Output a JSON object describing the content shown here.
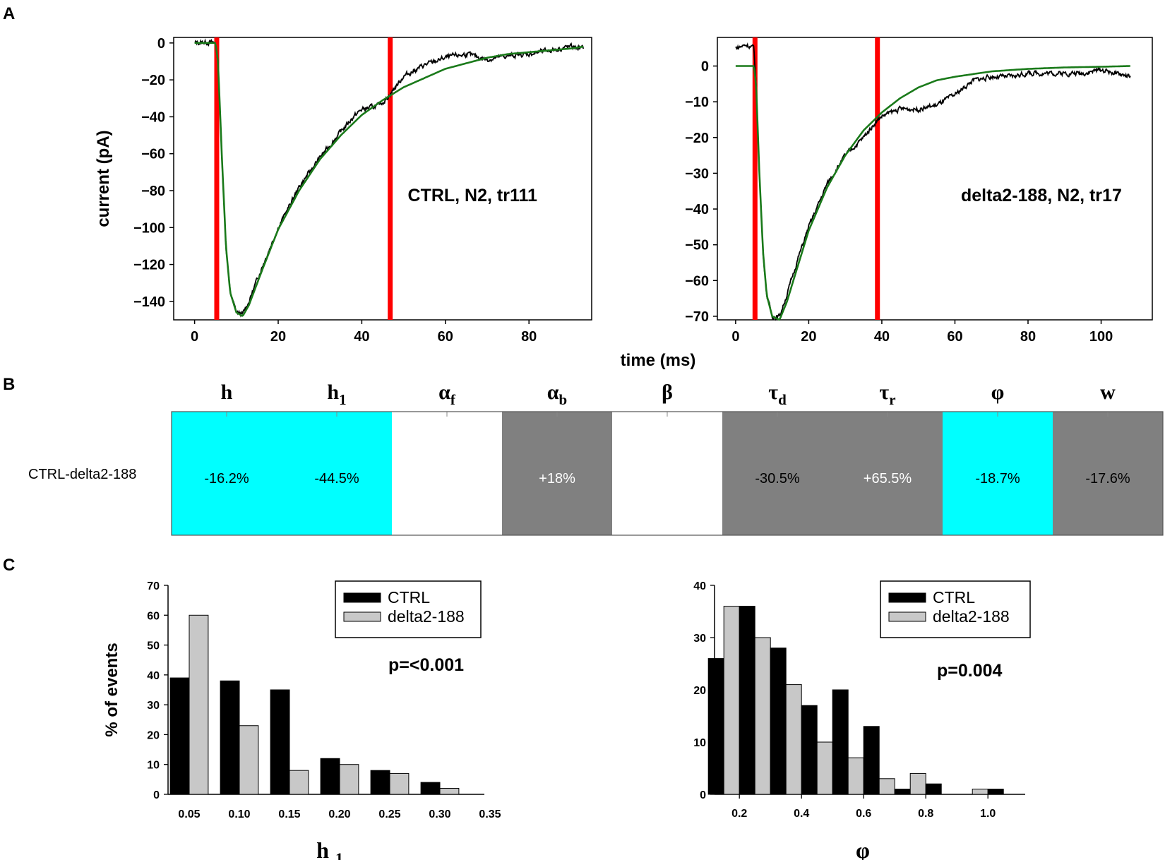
{
  "panel_letters": {
    "a": "A",
    "b": "B",
    "c": "C"
  },
  "colors": {
    "trace": "#000000",
    "fit": "#1a7a1a",
    "marker": "#ff0000",
    "cyan": "#00ffff",
    "gray": "#808080",
    "ctrl_bar": "#000000",
    "d2_bar": "#c8c8c8"
  },
  "shared_xlabel": "time (ms)",
  "chart_data": [
    {
      "id": "A-left",
      "type": "line",
      "title": "",
      "annotation": "CTRL, N2, tr111",
      "xlabel": "time (ms)",
      "ylabel": "current (pA)",
      "xlim": [
        -5,
        95
      ],
      "ylim": [
        -150,
        3
      ],
      "xticks": [
        0,
        20,
        40,
        60,
        80
      ],
      "yticks": [
        0,
        -20,
        -40,
        -60,
        -80,
        -100,
        -120,
        -140
      ],
      "markers_x": [
        5.3,
        46.8
      ],
      "series": [
        {
          "name": "recorded trace",
          "type": "noisy",
          "points": [
            [
              0,
              0
            ],
            [
              3,
              0.5
            ],
            [
              5,
              0
            ],
            [
              5.6,
              -10
            ],
            [
              6.5,
              -60
            ],
            [
              7.5,
              -110
            ],
            [
              8.5,
              -135
            ],
            [
              10,
              -146
            ],
            [
              11.5,
              -147
            ],
            [
              13,
              -140
            ],
            [
              16,
              -122
            ],
            [
              20,
              -100
            ],
            [
              25,
              -78
            ],
            [
              30,
              -62
            ],
            [
              35,
              -48
            ],
            [
              38,
              -40
            ],
            [
              40,
              -36
            ],
            [
              42,
              -35
            ],
            [
              44,
              -34
            ],
            [
              46,
              -30
            ],
            [
              48,
              -24
            ],
            [
              50,
              -18
            ],
            [
              55,
              -12
            ],
            [
              60,
              -8
            ],
            [
              65,
              -6
            ],
            [
              70,
              -9
            ],
            [
              75,
              -7
            ],
            [
              80,
              -6
            ],
            [
              85,
              -4
            ],
            [
              90,
              -2
            ],
            [
              93,
              -3
            ]
          ]
        },
        {
          "name": "model fit",
          "type": "smooth",
          "points": [
            [
              0,
              0
            ],
            [
              5,
              0
            ],
            [
              5.6,
              -10
            ],
            [
              6.5,
              -60
            ],
            [
              7.5,
              -110
            ],
            [
              8.5,
              -135
            ],
            [
              10,
              -146
            ],
            [
              11.5,
              -148
            ],
            [
              13,
              -142
            ],
            [
              16,
              -124
            ],
            [
              20,
              -101
            ],
            [
              25,
              -80
            ],
            [
              30,
              -63
            ],
            [
              35,
              -50
            ],
            [
              40,
              -39
            ],
            [
              45,
              -31
            ],
            [
              50,
              -24
            ],
            [
              55,
              -19
            ],
            [
              60,
              -14
            ],
            [
              65,
              -11
            ],
            [
              70,
              -8
            ],
            [
              75,
              -6
            ],
            [
              80,
              -5
            ],
            [
              85,
              -4
            ],
            [
              90,
              -3
            ],
            [
              93,
              -2
            ]
          ]
        }
      ]
    },
    {
      "id": "A-right",
      "type": "line",
      "title": "",
      "annotation": "delta2-188, N2, tr17",
      "xlabel": "time (ms)",
      "ylabel": "",
      "xlim": [
        -5,
        114
      ],
      "ylim": [
        -71,
        8
      ],
      "xticks": [
        0,
        20,
        40,
        60,
        80,
        100
      ],
      "yticks": [
        0,
        -10,
        -20,
        -30,
        -40,
        -50,
        -60,
        -70
      ],
      "markers_x": [
        5.3,
        38.8
      ],
      "series": [
        {
          "name": "recorded trace",
          "type": "noisy",
          "points": [
            [
              0,
              5
            ],
            [
              3,
              6
            ],
            [
              5,
              5
            ],
            [
              5.6,
              -5
            ],
            [
              6.5,
              -30
            ],
            [
              7.5,
              -52
            ],
            [
              8.5,
              -64
            ],
            [
              10,
              -70
            ],
            [
              12,
              -70
            ],
            [
              14,
              -64
            ],
            [
              17,
              -54
            ],
            [
              20,
              -45
            ],
            [
              25,
              -33
            ],
            [
              30,
              -25
            ],
            [
              35,
              -20
            ],
            [
              38,
              -16
            ],
            [
              40,
              -14
            ],
            [
              45,
              -12
            ],
            [
              50,
              -12
            ],
            [
              55,
              -11
            ],
            [
              60,
              -8
            ],
            [
              65,
              -4
            ],
            [
              70,
              -3
            ],
            [
              75,
              -3
            ],
            [
              80,
              -2
            ],
            [
              85,
              -2
            ],
            [
              90,
              -2
            ],
            [
              95,
              -2
            ],
            [
              100,
              -1
            ],
            [
              104,
              -2
            ],
            [
              108,
              -3
            ]
          ]
        },
        {
          "name": "model fit",
          "type": "smooth",
          "points": [
            [
              0,
              0
            ],
            [
              5,
              0
            ],
            [
              5.6,
              -5
            ],
            [
              6.5,
              -30
            ],
            [
              7.5,
              -52
            ],
            [
              8.5,
              -64
            ],
            [
              10,
              -70
            ],
            [
              12,
              -71
            ],
            [
              14,
              -66
            ],
            [
              17,
              -56
            ],
            [
              20,
              -46
            ],
            [
              25,
              -34
            ],
            [
              30,
              -25
            ],
            [
              35,
              -18
            ],
            [
              40,
              -13
            ],
            [
              45,
              -9
            ],
            [
              50,
              -6
            ],
            [
              55,
              -4
            ],
            [
              60,
              -3
            ],
            [
              70,
              -1.5
            ],
            [
              80,
              -0.8
            ],
            [
              90,
              -0.4
            ],
            [
              100,
              -0.2
            ],
            [
              108,
              0
            ]
          ]
        }
      ]
    },
    {
      "id": "B",
      "type": "table",
      "row_label": "CTRL-delta2-188",
      "columns": [
        {
          "sym": "h",
          "sub": "",
          "value": "-16.2%",
          "fill": "cyan"
        },
        {
          "sym": "h",
          "sub": "1",
          "value": "-44.5%",
          "fill": "cyan"
        },
        {
          "sym": "α",
          "sub": "f",
          "value": "",
          "fill": "white"
        },
        {
          "sym": "α",
          "sub": "b",
          "value": "+18%",
          "fill": "gray"
        },
        {
          "sym": "β",
          "sub": "",
          "value": "",
          "fill": "white"
        },
        {
          "sym": "τ",
          "sub": "d",
          "value": "-30.5%",
          "fill": "gray"
        },
        {
          "sym": "τ",
          "sub": "r",
          "value": "+65.5%",
          "fill": "gray"
        },
        {
          "sym": "φ",
          "sub": "",
          "value": "-18.7%",
          "fill": "cyan"
        },
        {
          "sym": "w",
          "sub": "",
          "value": "-17.6%",
          "fill": "gray"
        }
      ]
    },
    {
      "id": "C-left",
      "type": "bar",
      "xlabel": "h",
      "xlabel_sub": "1",
      "ylabel": "% of events",
      "annotation": "p=<0.001",
      "ylim": [
        0,
        70
      ],
      "yticks": [
        0,
        10,
        20,
        30,
        40,
        50,
        60,
        70
      ],
      "xticks": [
        "0.05",
        "0.10",
        "0.15",
        "0.20",
        "0.25",
        "0.30",
        "0.35"
      ],
      "categories": [
        "0.05",
        "0.10",
        "0.15",
        "0.20",
        "0.25",
        "0.30"
      ],
      "series": [
        {
          "name": "CTRL",
          "values": [
            39,
            38,
            35,
            12,
            8,
            4
          ]
        },
        {
          "name": "delta2-188",
          "values": [
            60,
            23,
            8,
            10,
            7,
            2
          ]
        }
      ],
      "legend": [
        "CTRL",
        "delta2-188"
      ]
    },
    {
      "id": "C-right",
      "type": "bar",
      "xlabel": "φ",
      "xlabel_sub": "",
      "ylabel": "",
      "annotation": "p=0.004",
      "ylim": [
        0,
        40
      ],
      "yticks": [
        0,
        10,
        20,
        30,
        40
      ],
      "xticks": [
        "0.2",
        "0.4",
        "0.6",
        "0.8",
        "1.0"
      ],
      "xlim": [
        0.12,
        1.12
      ],
      "bin_width": 0.1,
      "categories": [
        0.15,
        0.25,
        0.35,
        0.45,
        0.55,
        0.65,
        0.75,
        0.85,
        0.95,
        1.05
      ],
      "series": [
        {
          "name": "CTRL",
          "values": [
            26,
            36,
            28,
            17,
            20,
            13,
            1,
            2,
            0,
            1
          ]
        },
        {
          "name": "delta2-188",
          "values": [
            36,
            30,
            21,
            10,
            7,
            3,
            4,
            0,
            1,
            0
          ]
        }
      ],
      "legend": [
        "CTRL",
        "delta2-188"
      ]
    }
  ]
}
